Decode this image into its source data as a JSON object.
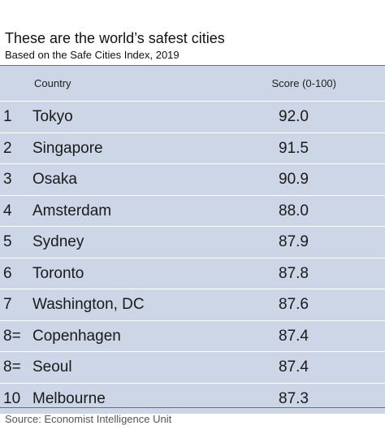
{
  "title": "These are the world’s safest cities",
  "subtitle": "Based on the Safe Cities Index, 2019",
  "source": "Source: Economist Intelligence Unit",
  "colors": {
    "row_background": "#ccd6e6",
    "row_divider": "#ffffff",
    "rule": "#6d6d6d"
  },
  "chart_data": {
    "type": "table",
    "columns": [
      "Country",
      "Score (0-100)"
    ],
    "rows": [
      {
        "rank": "1",
        "country": "Tokyo",
        "score": "92.0"
      },
      {
        "rank": "2",
        "country": "Singapore",
        "score": "91.5"
      },
      {
        "rank": "3",
        "country": "Osaka",
        "score": "90.9"
      },
      {
        "rank": "4",
        "country": "Amsterdam",
        "score": "88.0"
      },
      {
        "rank": "5",
        "country": "Sydney",
        "score": "87.9"
      },
      {
        "rank": "6",
        "country": "Toronto",
        "score": "87.8"
      },
      {
        "rank": "7",
        "country": "Washington, DC",
        "score": "87.6"
      },
      {
        "rank": "8=",
        "country": "Copenhagen",
        "score": "87.4"
      },
      {
        "rank": "8=",
        "country": "Seoul",
        "score": "87.4"
      },
      {
        "rank": "10",
        "country": "Melbourne",
        "score": "87.3"
      }
    ]
  }
}
